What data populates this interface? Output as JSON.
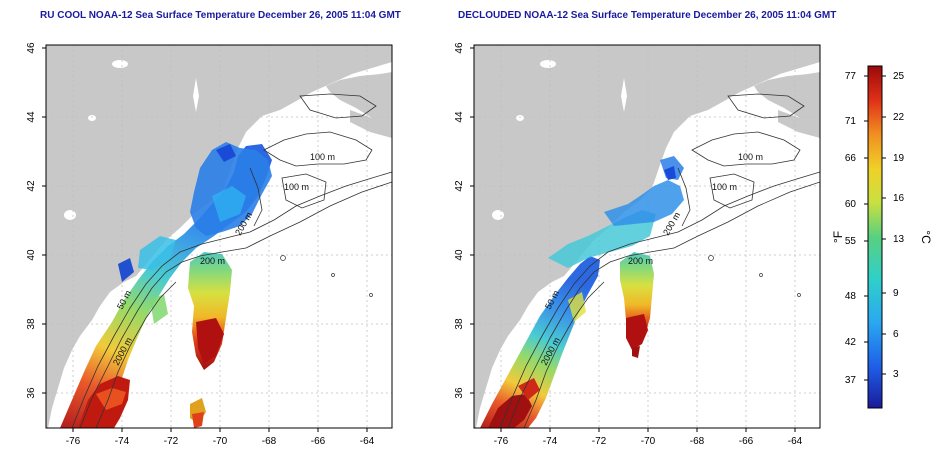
{
  "left_title": "RU COOL NOAA-12 Sea Surface Temperature December 26, 2005 11:04 GMT",
  "right_title": "DECLOUDED NOAA-12 Sea Surface Temperature December 26, 2005 11:04 GMT",
  "maps": {
    "x_ticks": [
      "-76",
      "-74",
      "-72",
      "-70",
      "-68",
      "-66",
      "-64"
    ],
    "y_ticks": [
      "36",
      "38",
      "40",
      "42",
      "44",
      "46"
    ],
    "contour_labels_left": [
      "100 m",
      "100 m",
      "200 m",
      "200 m",
      "2000 m",
      "50 m"
    ],
    "contour_labels_right": [
      "100 m",
      "100 m",
      "200 m",
      "200 m",
      "2000 m",
      "50 m"
    ]
  },
  "colorbar": {
    "fahrenheit_label": "°F",
    "celsius_label": "°C",
    "fahrenheit_ticks": [
      "77",
      "71",
      "66",
      "60",
      "55",
      "48",
      "42",
      "37"
    ],
    "celsius_ticks": [
      "25",
      "22",
      "19",
      "16",
      "13",
      "9",
      "6",
      "3"
    ]
  },
  "colors": {
    "land": "#c8c8c8",
    "title": "#1a1aa0",
    "contour": "#333333"
  }
}
